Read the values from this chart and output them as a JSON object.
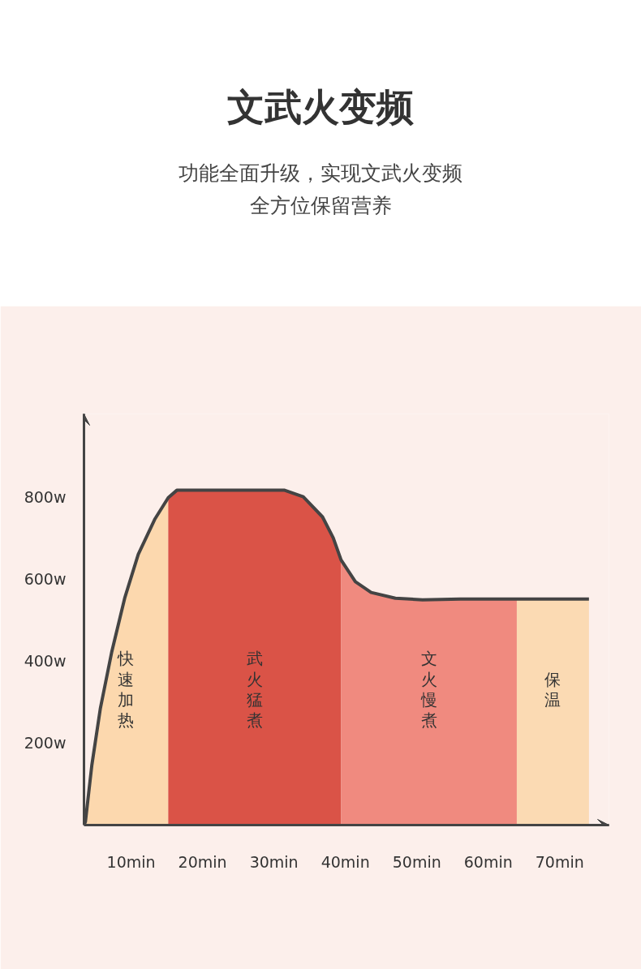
{
  "chart_data": {
    "type": "area",
    "title": "文武火变频",
    "subtitle": "功能全面升级，实现文武火变频全方位保留营养",
    "xlim": [
      3.4,
      76.9
    ],
    "ylim": [
      0,
      1002
    ],
    "xticks": [
      {
        "value": 10,
        "label": "10min"
      },
      {
        "value": 20,
        "label": "20min"
      },
      {
        "value": 30,
        "label": "30min"
      },
      {
        "value": 40,
        "label": "40min"
      },
      {
        "value": 50,
        "label": "50min"
      },
      {
        "value": 60,
        "label": "60min"
      },
      {
        "value": 70,
        "label": "70min"
      }
    ],
    "yticks": [
      {
        "value": 200,
        "label": "200w"
      },
      {
        "value": 400,
        "label": "400w"
      },
      {
        "value": 600,
        "label": "600w"
      },
      {
        "value": 800,
        "label": "800w"
      }
    ],
    "grid": false,
    "legend": false,
    "series": [
      {
        "name": "快速加热",
        "color": "#fcd6ab",
        "x": [
          3.4,
          3.6,
          4.5,
          5.7,
          7.3,
          9.1,
          11.0,
          13.3,
          15.2
        ],
        "values": [
          0,
          8,
          146,
          285,
          423,
          553,
          660,
          745,
          798
        ]
      },
      {
        "name": "武火猛煮",
        "color": "#d84a3e",
        "x": [
          15.2,
          16.4,
          31.5,
          34.1,
          36.8,
          38.3,
          39.4
        ],
        "values": [
          798,
          816,
          816,
          800,
          751,
          700,
          646
        ]
      },
      {
        "name": "文火慢煮",
        "color": "#ef8479",
        "x": [
          39.4,
          41.4,
          43.6,
          47.0,
          50.8,
          56.1,
          64.0
        ],
        "values": [
          646,
          593,
          567,
          553,
          549,
          551,
          551
        ]
      },
      {
        "name": "保温",
        "color": "#fbd8b0",
        "x": [
          64.0,
          74.1
        ],
        "values": [
          551,
          551
        ]
      },
      {
        "type": "line",
        "color": "#444444",
        "x": [
          3.4,
          3.6,
          4.5,
          5.7,
          7.3,
          9.1,
          11.0,
          13.3,
          15.2,
          16.4,
          31.5,
          34.1,
          36.8,
          38.3,
          39.4,
          41.4,
          43.6,
          47.0,
          50.8,
          56.1,
          64.0,
          74.1
        ],
        "values": [
          0,
          8,
          146,
          285,
          423,
          553,
          660,
          745,
          798,
          816,
          816,
          800,
          751,
          700,
          646,
          593,
          567,
          553,
          549,
          551,
          551,
          551
        ]
      }
    ]
  }
}
